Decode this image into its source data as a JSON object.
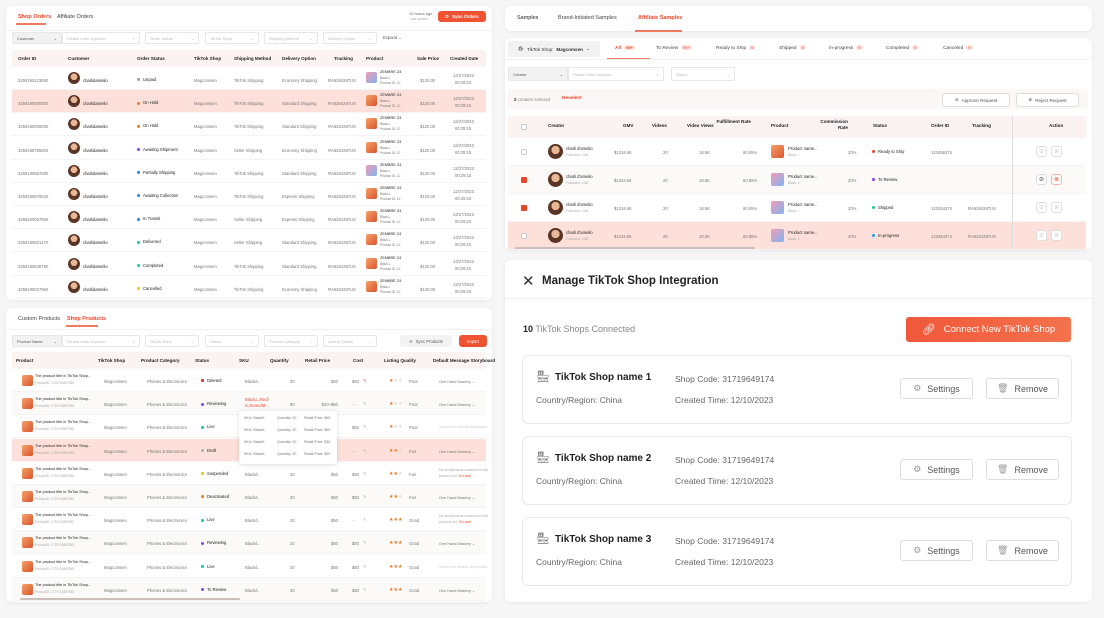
{
  "colors": {
    "accent": "#EF5331",
    "highlight_row": "#FDE0DA",
    "header_bg": "#FBF3F2"
  },
  "orders": {
    "tabs": [
      "Shop Orders",
      "Affiliate Orders"
    ],
    "updated": "12 hours ago",
    "updated_sub": "Last updated",
    "sync_label": "Sync Orders",
    "filters": {
      "customer": "Customer",
      "keyword_placeholder": "Please enter keyword",
      "status": "Order Status",
      "shop": "TikTok Shop",
      "shipping": "Shipping Method",
      "delivery": "Delivery Option",
      "expand": "Expand"
    },
    "columns": [
      "Order ID",
      "Customer",
      "Order Status",
      "TikTok Shop",
      "Shipping Method",
      "Delivery Option",
      "Tracking",
      "Product",
      "Sale Price",
      "Created Date"
    ],
    "rows": [
      {
        "id": "3258190123650",
        "customer": "charlidamelio",
        "status": "Unpaid",
        "color": "#999999",
        "shop": "Magcomsen",
        "ship": "TikTok Shipping",
        "delivery": "Economy Shipping",
        "tracking": "RA6254287US",
        "product": "ZEMBRE Z4",
        "variant": "Black,L",
        "pid": "Product ID: 12",
        "price": "$120.00",
        "date": "12/27/2023",
        "time": "00:29:15",
        "thumb": "b"
      },
      {
        "id": "3258190000000",
        "customer": "charlidamelio",
        "status": "On Hold",
        "color": "#f07c1a",
        "shop": "Magcomsen",
        "ship": "TikTok Shipping",
        "delivery": "Standard Shipping",
        "tracking": "RA6254287US",
        "product": "ZEMBRE Z4",
        "variant": "Black,L",
        "pid": "Product ID: 12",
        "price": "$120.00",
        "date": "12/27/2023",
        "time": "00:29:15",
        "thumb": "a"
      },
      {
        "id": "3258190000000",
        "customer": "charlidamelio",
        "status": "On Hold",
        "color": "#f07c1a",
        "shop": "Magcomsen",
        "ship": "TikTok Shipping",
        "delivery": "Standard Shipping",
        "tracking": "RA6254287US",
        "product": "ZEMBRE Z4",
        "variant": "Black,L",
        "pid": "Product ID: 12",
        "price": "$120.00",
        "date": "12/27/2023",
        "time": "00:29:15",
        "thumb": "a"
      },
      {
        "id": "3258198765902",
        "customer": "charlidamelio",
        "status": "Awaiting Shipment",
        "color": "#8a3ff0",
        "shop": "Magcomsen",
        "ship": "Seller Shipping",
        "delivery": "Economy Shipping",
        "tracking": "RA6254287US",
        "product": "ZEMBRE Z4",
        "variant": "Black,L",
        "pid": "Product ID: 12",
        "price": "$120.00",
        "date": "12/27/2023",
        "time": "00:29:15",
        "thumb": "a"
      },
      {
        "id": "3258190567680",
        "customer": "charlidamelio",
        "status": "Partially Shipping",
        "color": "#2f7cf0",
        "shop": "Magcomsen",
        "ship": "TikTok Shipping",
        "delivery": "Standard Shipping",
        "tracking": "RA6254287US",
        "product": "ZEMBRE Z4",
        "variant": "Black,L",
        "pid": "Product ID: 12",
        "price": "$120.00",
        "date": "12/27/2023",
        "time": "00:29:15",
        "thumb": "b"
      },
      {
        "id": "3258190876540",
        "customer": "charlidamelio",
        "status": "Awaiting Collection",
        "color": "#2f7cf0",
        "shop": "Magcomsen",
        "ship": "TikTok Shipping",
        "delivery": "Express Shipping",
        "tracking": "RA6254287US",
        "product": "ZEMBRE Z4",
        "variant": "Black,L",
        "pid": "Product ID: 12",
        "price": "$120.00",
        "date": "12/27/2023",
        "time": "00:29:15",
        "thumb": "a"
      },
      {
        "id": "3258190057950",
        "customer": "charlidamelio",
        "status": "In Transit",
        "color": "#2f7cf0",
        "shop": "Magcomsen",
        "ship": "Seller Shipping",
        "delivery": "Express Shipping",
        "tracking": "RA6254287US",
        "product": "ZEMBRE Z4",
        "variant": "Black,L",
        "pid": "Product ID: 12",
        "price": "$120.00",
        "date": "12/27/2023",
        "time": "00:29:15",
        "thumb": "a"
      },
      {
        "id": "3258190501470",
        "customer": "charlidamelio",
        "status": "Delivered",
        "color": "#16c79a",
        "shop": "Magcomsen",
        "ship": "Seller Shipping",
        "delivery": "Standard Shipping",
        "tracking": "RA6254287US",
        "product": "ZEMBRE Z4",
        "variant": "Black,L",
        "pid": "Product ID: 12",
        "price": "$120.00",
        "date": "12/27/2023",
        "time": "00:29:15",
        "thumb": "a"
      },
      {
        "id": "3258190638750",
        "customer": "charlidamelio",
        "status": "Completed",
        "color": "#16c79a",
        "shop": "Magcomsen",
        "ship": "TikTok Shipping",
        "delivery": "Standard Shipping",
        "tracking": "RA6254287US",
        "product": "ZEMBRE Z4",
        "variant": "Black,L",
        "pid": "Product ID: 12",
        "price": "$120.00",
        "date": "12/27/2023",
        "time": "00:29:15",
        "thumb": "a"
      },
      {
        "id": "3258190027960",
        "customer": "charlidamelio",
        "status": "Cancelled",
        "color": "#f0c419",
        "shop": "Magcomsen",
        "ship": "TikTok Shipping",
        "delivery": "Economy Shipping",
        "tracking": "RA6254287US",
        "product": "ZEMBRE Z4",
        "variant": "Black,L",
        "pid": "Product ID: 12",
        "price": "$120.00",
        "date": "12/27/2023",
        "time": "00:29:15",
        "thumb": "a"
      }
    ]
  },
  "products": {
    "tabs": [
      "Custom Products",
      "Shop Products"
    ],
    "filters": {
      "name": "Product Name",
      "keyword_placeholder": "Please enter keyword",
      "shop": "TikTok Shop",
      "status": "Status",
      "category": "Product Category",
      "quality": "Listing Quality"
    },
    "sync_label": "Sync Products",
    "import_label": "Import",
    "columns": [
      "Product",
      "TikTok Shop",
      "Product Category",
      "Status",
      "SKU",
      "Quantity",
      "Retail Price",
      "Cost",
      "Listing Quality",
      "Default Message Storyboard"
    ],
    "rows": [
      {
        "title": "The product title in TikTok Shop...",
        "pid": "ProductID: 1729744857585",
        "shop": "Magcomsen",
        "cat": "Phones & Electronics",
        "status": "Deleted",
        "color": "#e02424",
        "sku": "Black/L",
        "qty": "20",
        "price": "$50",
        "cost": "$50",
        "stars": 1,
        "quality": "Poor",
        "story": "One Hand Mastery"
      },
      {
        "title": "The product title in TikTok Shop...",
        "pid": "ProductID: 1729744857585",
        "shop": "Magcomsen",
        "cat": "Phones & Electronics",
        "status": "Reviewing",
        "color": "#8a3ff0",
        "sku": "Black,L,Red/ S,Green/M...",
        "qty": "80",
        "price": "$20~$50",
        "cost": "···",
        "stars": 1,
        "quality": "Poor",
        "story": "One Hand Mastery"
      },
      {
        "title": "The product title in TikTok Shop...",
        "pid": "ProductID: 1729744857585",
        "shop": "Magcomsen",
        "cat": "Phones & Electronics",
        "status": "Live",
        "color": "#16c79a",
        "sku": "",
        "qty": "",
        "price": "",
        "cost": "$50",
        "stars": 1,
        "quality": "Poor",
        "story": "Select the default storyboard"
      },
      {
        "title": "The product title in TikTok Shop...",
        "pid": "ProductID: 1729744857585",
        "shop": "Magcomsen",
        "cat": "Phones & Electronics",
        "status": "Draft",
        "color": "#9fb4c8",
        "sku": "",
        "qty": "",
        "price": "",
        "cost": "···",
        "stars": 2,
        "quality": "Fair",
        "story": "One Hand Mastery"
      },
      {
        "title": "The product title in TikTok Shop...",
        "pid": "ProductID: 1729744857585",
        "shop": "Magcomsen",
        "cat": "Phones & Electronics",
        "status": "Suspended",
        "color": "#e8c414",
        "sku": "Black/L",
        "qty": "20",
        "price": "$50",
        "cost": "$50",
        "stars": 2,
        "quality": "Fair",
        "story": "No storyboards created for this product yet.",
        "story_link": "Go add"
      },
      {
        "title": "The product title in TikTok Shop...",
        "pid": "ProductID: 1729744857585",
        "shop": "Magcomsen",
        "cat": "Phones & Electronics",
        "status": "Deactivated",
        "color": "#f07c1a",
        "sku": "Black/L",
        "qty": "20",
        "price": "$50",
        "cost": "$50",
        "stars": 2,
        "quality": "Fair",
        "story": "One Hand Mastery"
      },
      {
        "title": "The product title in TikTok Shop...",
        "pid": "ProductID: 1729744857585",
        "shop": "Magcomsen",
        "cat": "Phones & Electronics",
        "status": "Live",
        "color": "#16c79a",
        "sku": "Black/L",
        "qty": "20",
        "price": "$50",
        "cost": "···",
        "stars": 3,
        "quality": "Good",
        "story": "No storyboards created for this product yet.",
        "story_link": "Go add"
      },
      {
        "title": "The product title in TikTok Shop...",
        "pid": "ProductID: 1729744857585",
        "shop": "Magcomsen",
        "cat": "Phones & Electronics",
        "status": "Reviewing",
        "color": "#8a3ff0",
        "sku": "Black/L",
        "qty": "20",
        "price": "$50",
        "cost": "$50",
        "stars": 3,
        "quality": "Good",
        "story": "One Hand Mastery"
      },
      {
        "title": "The product title in TikTok Shop...",
        "pid": "ProductID: 1729744857585",
        "shop": "Magcomsen",
        "cat": "Phones & Electronics",
        "status": "Live",
        "color": "#16c79a",
        "sku": "Black/L",
        "qty": "20",
        "price": "$50",
        "cost": "$50",
        "stars": 3,
        "quality": "Good",
        "story": "Select the default storyboard"
      },
      {
        "title": "The product title in TikTok Shop...",
        "pid": "ProductID: 1729744857585",
        "shop": "Magcomsen",
        "cat": "Phones & Electronics",
        "status": "To Review",
        "color": "#8a3ff0",
        "sku": "Black/L",
        "qty": "20",
        "price": "$50",
        "cost": "$50",
        "stars": 3,
        "quality": "Good",
        "story": "One Hand Mastery"
      }
    ],
    "sku_popup": [
      {
        "sku": "SKU: Black/L",
        "qty": "Quantity: 20",
        "price": "Retail Price: $50"
      },
      {
        "sku": "SKU: Black/L",
        "qty": "Quantity: 20",
        "price": "Retail Price: $60"
      },
      {
        "sku": "SKU: Black/L",
        "qty": "Quantity: 20",
        "price": "Retail Price: $30"
      },
      {
        "sku": "SKU: Black/L",
        "qty": "Quantity: 20",
        "price": "Retail Price: $20"
      }
    ]
  },
  "samples": {
    "tabs": [
      "Samples",
      "Brand-Initiated Samples",
      "Affiliate Samples"
    ],
    "shop_label": "TikTok Shop:",
    "shop_name": "Magcomsen",
    "status_tabs": [
      {
        "label": "All",
        "count": "99+"
      },
      {
        "label": "To Review",
        "count": "99+"
      },
      {
        "label": "Ready to Ship",
        "count": "9"
      },
      {
        "label": "Shipped",
        "count": "9"
      },
      {
        "label": "In-progress",
        "count": "9"
      },
      {
        "label": "Completed",
        "count": "9"
      },
      {
        "label": "Canceled",
        "count": "9"
      }
    ],
    "filters": {
      "creator": "Creator",
      "keyword_placeholder": "Please enter keyword",
      "status": "Status"
    },
    "selected_count": "2",
    "selected_text": "creators selected",
    "deselect": "Deselect",
    "approve": "Approve Request",
    "reject": "Reject Request",
    "columns": [
      "Creator",
      "GMV",
      "Videos",
      "Video Views",
      "Fulfillment Rate",
      "Product",
      "Commission Rate",
      "Status",
      "Order ID",
      "Tracking",
      "Action"
    ],
    "rows": [
      {
        "checked": false,
        "name": "charli d'amelio",
        "followers": "Followers: 10M",
        "gmv": "$1234.56",
        "videos": "20",
        "views": "18.5K",
        "rate": "60.85%",
        "product": "Product name...",
        "variant": "Black, L",
        "commission": "20%",
        "status": "Ready to Ship",
        "color": "#e8472a",
        "order": "123456374",
        "tracking": "",
        "thumb": "a"
      },
      {
        "checked": true,
        "name": "charli d'amelio",
        "followers": "Followers: 10M",
        "gmv": "$1234.56",
        "videos": "20",
        "views": "18.5K",
        "rate": "60.85%",
        "product": "Product name...",
        "variant": "Black, L",
        "commission": "20%",
        "status": "To Review",
        "color": "#8a3ff0",
        "order": "",
        "tracking": "",
        "thumb": "b"
      },
      {
        "checked": true,
        "name": "charli d'amelio",
        "followers": "Followers: 10M",
        "gmv": "$1234.56",
        "videos": "20",
        "views": "18.5K",
        "rate": "60.85%",
        "product": "Product name...",
        "variant": "Black, L",
        "commission": "20%",
        "status": "Shipped",
        "color": "#16c79a",
        "order": "123454374",
        "tracking": "RA6254287US",
        "thumb": "b"
      },
      {
        "checked": false,
        "name": "charli d'amelio",
        "followers": "Followers: 10M",
        "gmv": "$1234.56",
        "videos": "20",
        "views": "18.5K",
        "rate": "60.85%",
        "product": "Product name...",
        "variant": "Black, L",
        "commission": "20%",
        "status": "In-progress",
        "color": "#1e9cf0",
        "order": "123454374",
        "tracking": "RA6254287US",
        "thumb": "b"
      }
    ]
  },
  "integration": {
    "title": "Manage TikTok Shop Integration",
    "count": "10",
    "count_text": "TikTok Shops Connected",
    "connect_label": "Connect New TikTok Shop",
    "shops": [
      {
        "name": "TikTok Shop name 1",
        "region": "Country/Region: China",
        "code": "Shop Code: 31719649174",
        "created": "Created Time: 12/10/2023"
      },
      {
        "name": "TikTok Shop name 2",
        "region": "Country/Region: China",
        "code": "Shop Code: 31719649174",
        "created": "Created Time: 12/10/2023"
      },
      {
        "name": "TikTok Shop name 3",
        "region": "Country/Region: China",
        "code": "Shop Code: 31719649174",
        "created": "Created Time: 12/10/2023"
      }
    ],
    "settings_label": "Settings",
    "remove_label": "Remove"
  }
}
